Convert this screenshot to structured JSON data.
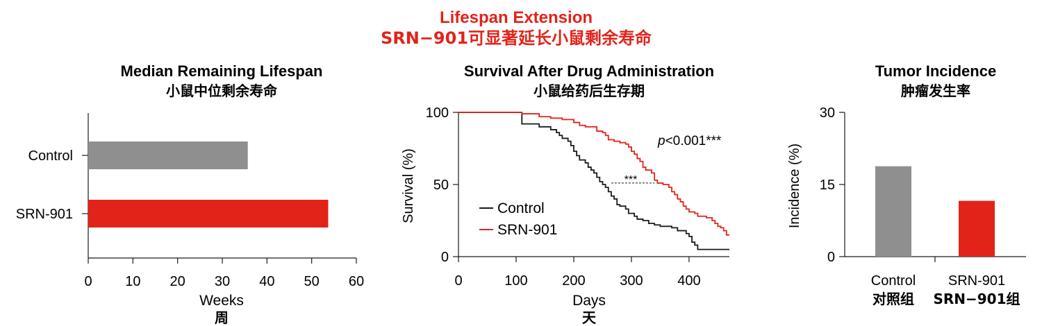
{
  "header": {
    "title_en": "Lifespan Extension",
    "title_cn": "SRN−901可显著延长小鼠剩余寿命"
  },
  "colors": {
    "control": "#8f8f8f",
    "treatment": "#e2231a",
    "title": "#e2231a",
    "axis": "#1a1a1a"
  },
  "chart_data": [
    {
      "type": "bar",
      "orientation": "horizontal",
      "title": "Median Remaining Lifespan",
      "subtitle": "小鼠中位剩余寿命",
      "xlabel": "Weeks",
      "xlabel_cn": "周",
      "categories": [
        "Control",
        "SRN-901"
      ],
      "values": [
        35.7,
        53.7
      ],
      "xlim": [
        0,
        60
      ],
      "xticks": [
        0,
        10,
        20,
        30,
        40,
        50,
        60
      ]
    },
    {
      "type": "line",
      "subtype": "kaplan-meier",
      "title": "Survival After Drug Administration",
      "subtitle": "小鼠给药后生存期",
      "xlabel": "Days",
      "xlabel_cn": "天",
      "ylabel": "Survival (%)",
      "xlim": [
        0,
        470
      ],
      "ylim": [
        0,
        100
      ],
      "xticks": [
        0,
        100,
        200,
        300,
        400
      ],
      "yticks": [
        0,
        50,
        100
      ],
      "annotation_p": "p<0.001***",
      "annotation_median": "***",
      "legend_position": "left-middle",
      "series": [
        {
          "name": "Control",
          "points": [
            [
              0,
              100
            ],
            [
              105,
              100
            ],
            [
              110,
              92
            ],
            [
              130,
              92
            ],
            [
              140,
              90
            ],
            [
              155,
              90
            ],
            [
              160,
              88
            ],
            [
              170,
              86
            ],
            [
              175,
              84
            ],
            [
              180,
              82
            ],
            [
              190,
              80
            ],
            [
              195,
              77
            ],
            [
              200,
              73
            ],
            [
              205,
              70
            ],
            [
              210,
              67
            ],
            [
              220,
              65
            ],
            [
              225,
              62
            ],
            [
              230,
              60
            ],
            [
              235,
              58
            ],
            [
              240,
              55
            ],
            [
              245,
              52
            ],
            [
              250,
              50
            ],
            [
              255,
              48
            ],
            [
              260,
              45
            ],
            [
              265,
              42
            ],
            [
              270,
              40
            ],
            [
              275,
              36
            ],
            [
              280,
              35
            ],
            [
              290,
              33
            ],
            [
              295,
              30
            ],
            [
              305,
              28
            ],
            [
              310,
              26
            ],
            [
              320,
              25
            ],
            [
              330,
              23
            ],
            [
              340,
              22
            ],
            [
              350,
              21
            ],
            [
              370,
              20
            ],
            [
              380,
              18
            ],
            [
              395,
              16
            ],
            [
              400,
              14
            ],
            [
              405,
              10
            ],
            [
              410,
              8
            ],
            [
              415,
              5
            ],
            [
              420,
              5
            ],
            [
              470,
              5
            ]
          ]
        },
        {
          "name": "SRN-901",
          "points": [
            [
              0,
              100
            ],
            [
              100,
              100
            ],
            [
              110,
              99
            ],
            [
              140,
              97
            ],
            [
              160,
              96
            ],
            [
              170,
              96
            ],
            [
              180,
              95
            ],
            [
              200,
              93
            ],
            [
              210,
              91
            ],
            [
              220,
              90
            ],
            [
              240,
              87
            ],
            [
              250,
              86
            ],
            [
              255,
              84
            ],
            [
              260,
              81
            ],
            [
              270,
              80
            ],
            [
              280,
              79
            ],
            [
              290,
              78
            ],
            [
              295,
              76
            ],
            [
              300,
              73
            ],
            [
              305,
              71
            ],
            [
              310,
              68
            ],
            [
              315,
              66
            ],
            [
              320,
              62
            ],
            [
              325,
              60
            ],
            [
              335,
              58
            ],
            [
              340,
              53
            ],
            [
              345,
              51
            ],
            [
              355,
              50
            ],
            [
              365,
              48
            ],
            [
              370,
              45
            ],
            [
              375,
              43
            ],
            [
              380,
              40
            ],
            [
              385,
              38
            ],
            [
              390,
              35
            ],
            [
              395,
              33
            ],
            [
              400,
              31
            ],
            [
              410,
              30
            ],
            [
              415,
              28
            ],
            [
              430,
              27
            ],
            [
              440,
              25
            ],
            [
              445,
              23
            ],
            [
              450,
              21
            ],
            [
              455,
              20
            ],
            [
              460,
              18
            ],
            [
              465,
              15
            ],
            [
              470,
              15
            ]
          ]
        }
      ]
    },
    {
      "type": "bar",
      "title": "Tumor Incidence",
      "subtitle": "肿瘤发生率",
      "ylabel": "Incidence (%)",
      "categories": [
        "Control",
        "SRN-901"
      ],
      "categories_cn": [
        "对照组",
        "SRN−901组"
      ],
      "values": [
        18.8,
        11.6
      ],
      "ylim": [
        0,
        30
      ],
      "yticks": [
        0,
        15,
        30
      ]
    }
  ]
}
